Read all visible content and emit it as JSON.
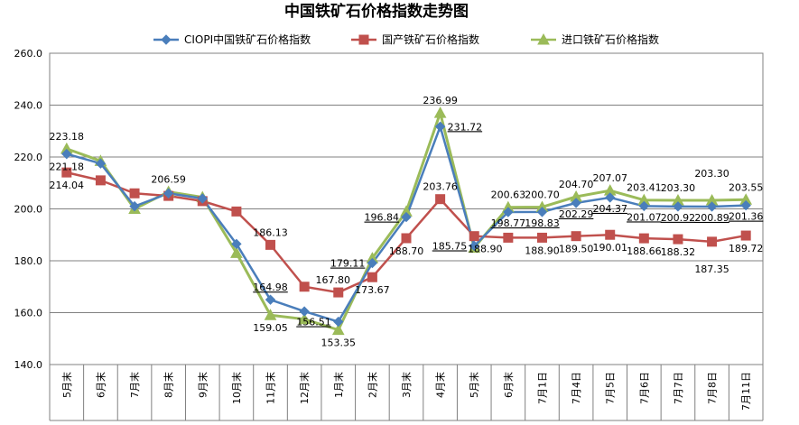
{
  "chart_data": {
    "type": "line",
    "title": "中国铁矿石价格指数走势图",
    "xlabel": "",
    "ylabel": "",
    "ylim": [
      140,
      260
    ],
    "yticks": [
      "140.0",
      "160.0",
      "180.0",
      "200.0",
      "220.0",
      "240.0",
      "260.0"
    ],
    "grid": true,
    "legend_position": "top",
    "categories": [
      "5月末",
      "6月末",
      "7月末",
      "8月末",
      "9月末",
      "10月末",
      "11月末",
      "12月末",
      "1月末",
      "2月末",
      "3月末",
      "4月末",
      "5月末",
      "6月末",
      "7月1日",
      "7月4日",
      "7月5日",
      "7月6日",
      "7月7日",
      "7月8日",
      "7月11日"
    ],
    "series": [
      {
        "name": "CIOPI中国铁矿石价格指数",
        "color": "#4a7ebb",
        "marker": "diamond",
        "values": [
          221.18,
          217.5,
          201.0,
          206.0,
          204.0,
          186.5,
          164.98,
          160.5,
          156.51,
          179.11,
          196.84,
          231.72,
          185.75,
          198.77,
          198.83,
          202.29,
          204.37,
          201.07,
          200.92,
          200.89,
          201.36
        ]
      },
      {
        "name": "国产铁矿石价格指数",
        "color": "#c0504d",
        "marker": "square",
        "values": [
          214.04,
          211.0,
          206.0,
          205.0,
          203.0,
          199.0,
          186.13,
          170.0,
          167.8,
          173.67,
          188.7,
          203.76,
          189.5,
          188.9,
          188.9,
          189.5,
          190.01,
          188.66,
          188.32,
          187.35,
          189.72
        ]
      },
      {
        "name": "进口铁矿石价格指数",
        "color": "#9bbb59",
        "marker": "triangle",
        "values": [
          223.18,
          218.5,
          200.0,
          206.59,
          204.5,
          183.0,
          159.05,
          157.5,
          153.35,
          181.0,
          199.0,
          236.99,
          185.0,
          200.63,
          200.7,
          204.7,
          207.07,
          203.41,
          203.3,
          203.3,
          203.55
        ]
      }
    ],
    "data_labels": [
      {
        "text": "223.18",
        "series": 2,
        "index": 0,
        "pos": "above"
      },
      {
        "text": "221.18",
        "series": 0,
        "index": 0,
        "pos": "below-line"
      },
      {
        "text": "214.04",
        "series": 1,
        "index": 0,
        "pos": "below"
      },
      {
        "text": "206.59",
        "series": 2,
        "index": 3,
        "pos": "above"
      },
      {
        "text": "186.13",
        "series": 1,
        "index": 6,
        "pos": "above"
      },
      {
        "text": "164.98",
        "series": 0,
        "index": 6,
        "pos": "above-underline"
      },
      {
        "text": "159.05",
        "series": 2,
        "index": 6,
        "pos": "below"
      },
      {
        "text": "167.80",
        "series": 1,
        "index": 8,
        "pos": "above-left"
      },
      {
        "text": "156.51",
        "series": 0,
        "index": 8,
        "pos": "left-underline"
      },
      {
        "text": "153.35",
        "series": 2,
        "index": 8,
        "pos": "below"
      },
      {
        "text": "179.11",
        "series": 0,
        "index": 9,
        "pos": "left-underline"
      },
      {
        "text": "173.67",
        "series": 1,
        "index": 9,
        "pos": "below"
      },
      {
        "text": "196.84",
        "series": 0,
        "index": 10,
        "pos": "left-underline"
      },
      {
        "text": "188.70",
        "series": 1,
        "index": 10,
        "pos": "below"
      },
      {
        "text": "236.99",
        "series": 2,
        "index": 11,
        "pos": "above"
      },
      {
        "text": "231.72",
        "series": 0,
        "index": 11,
        "pos": "right-underline"
      },
      {
        "text": "203.76",
        "series": 1,
        "index": 11,
        "pos": "above"
      },
      {
        "text": "185.75",
        "series": 0,
        "index": 12,
        "pos": "left-underline"
      },
      {
        "text": "188.90",
        "series": 1,
        "index": 12,
        "pos": "below-right"
      },
      {
        "text": "200.63",
        "series": 2,
        "index": 13,
        "pos": "above"
      },
      {
        "text": "198.77",
        "series": 0,
        "index": 13,
        "pos": "below-underline"
      },
      {
        "text": "188.90",
        "series": 1,
        "index": 14,
        "pos": "below"
      },
      {
        "text": "200.70",
        "series": 2,
        "index": 14,
        "pos": "above"
      },
      {
        "text": "198.83",
        "series": 0,
        "index": 14,
        "pos": "below-underline"
      },
      {
        "text": "204.70",
        "series": 2,
        "index": 15,
        "pos": "above"
      },
      {
        "text": "202.29",
        "series": 0,
        "index": 15,
        "pos": "below-underline"
      },
      {
        "text": "189.50",
        "series": 1,
        "index": 15,
        "pos": "below"
      },
      {
        "text": "207.07",
        "series": 2,
        "index": 16,
        "pos": "above"
      },
      {
        "text": "204.37",
        "series": 0,
        "index": 16,
        "pos": "below-underline"
      },
      {
        "text": "190.01",
        "series": 1,
        "index": 16,
        "pos": "below"
      },
      {
        "text": "203.41",
        "series": 2,
        "index": 17,
        "pos": "above"
      },
      {
        "text": "201.07",
        "series": 0,
        "index": 17,
        "pos": "below-underline"
      },
      {
        "text": "188.66",
        "series": 1,
        "index": 17,
        "pos": "below"
      },
      {
        "text": "203.30",
        "series": 2,
        "index": 18,
        "pos": "above"
      },
      {
        "text": "200.92",
        "series": 0,
        "index": 18,
        "pos": "below-underline"
      },
      {
        "text": "188.32",
        "series": 1,
        "index": 18,
        "pos": "below"
      },
      {
        "text": "203.30",
        "series": 2,
        "index": 19,
        "pos": "above-high"
      },
      {
        "text": "200.89",
        "series": 0,
        "index": 19,
        "pos": "below-underline"
      },
      {
        "text": "187.35",
        "series": 1,
        "index": 19,
        "pos": "below-low"
      },
      {
        "text": "203.55",
        "series": 2,
        "index": 20,
        "pos": "above"
      },
      {
        "text": "201.36",
        "series": 0,
        "index": 20,
        "pos": "below-underline"
      },
      {
        "text": "189.72",
        "series": 1,
        "index": 20,
        "pos": "below"
      }
    ]
  }
}
